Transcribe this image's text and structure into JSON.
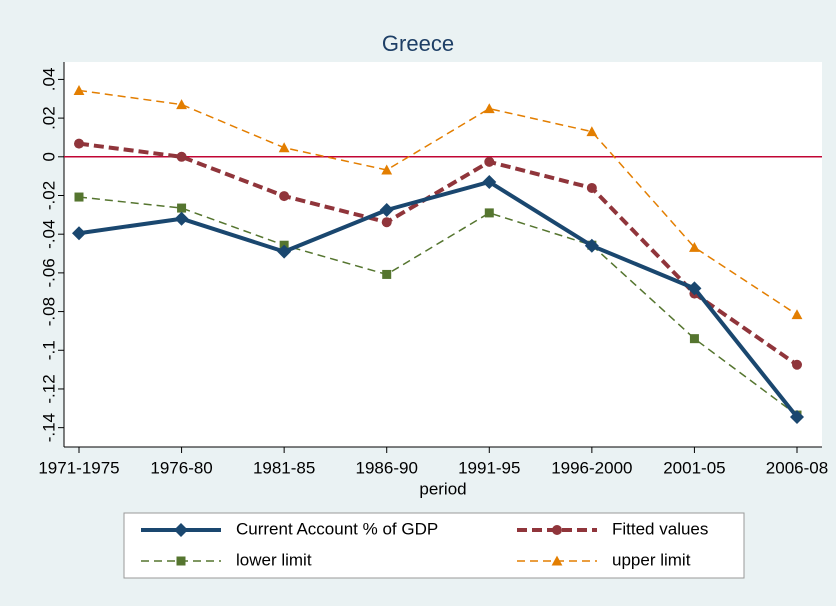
{
  "chart_data": {
    "type": "line",
    "title": "Greece",
    "x_label": "period",
    "categories": [
      "1971-1975",
      "1976-80",
      "1981-85",
      "1986-90",
      "1991-95",
      "1996-2000",
      "2001-05",
      "2006-08"
    ],
    "series": [
      {
        "name": "Current Account % of GDP",
        "color": "#1a476f",
        "dash": false,
        "width": 4,
        "marker": "diamond",
        "values": [
          -0.0395,
          -0.032,
          -0.049,
          -0.0275,
          -0.013,
          -0.046,
          -0.068,
          -0.1345
        ]
      },
      {
        "name": "Fitted values",
        "color": "#90353b",
        "dash": true,
        "width": 4,
        "marker": "circle",
        "values": [
          0.0068,
          0,
          -0.0203,
          -0.0338,
          -0.0026,
          -0.0161,
          -0.0707,
          -0.1075
        ]
      },
      {
        "name": "lower limit",
        "color": "#55752f",
        "dash": true,
        "width": 1.5,
        "marker": "square",
        "values": [
          -0.0208,
          -0.0265,
          -0.0457,
          -0.0608,
          -0.029,
          -0.0457,
          -0.094,
          -0.1335
        ]
      },
      {
        "name": "upper limit",
        "color": "#e37e00",
        "dash": true,
        "width": 1.5,
        "marker": "triangle",
        "values": [
          0.0343,
          0.027,
          0.0047,
          -0.0068,
          0.0249,
          0.013,
          -0.0468,
          -0.0816
        ]
      }
    ],
    "ylim": [
      -0.15,
      0.049
    ],
    "yticks": [
      {
        "value": 0.04,
        "label": ".04"
      },
      {
        "value": 0.02,
        "label": ".02"
      },
      0,
      {
        "value": -0.02,
        "label": "-.02"
      },
      {
        "value": -0.04,
        "label": "-.04"
      },
      {
        "value": -0.06,
        "label": "-.06"
      },
      {
        "value": -0.08,
        "label": "-.08"
      },
      {
        "value": -0.1,
        "label": "-.1"
      },
      {
        "value": -0.12,
        "label": "-.12"
      },
      {
        "value": -0.14,
        "label": "-.14"
      }
    ],
    "reference_line": {
      "value": 0,
      "color": "#c10534"
    },
    "grid": false
  }
}
